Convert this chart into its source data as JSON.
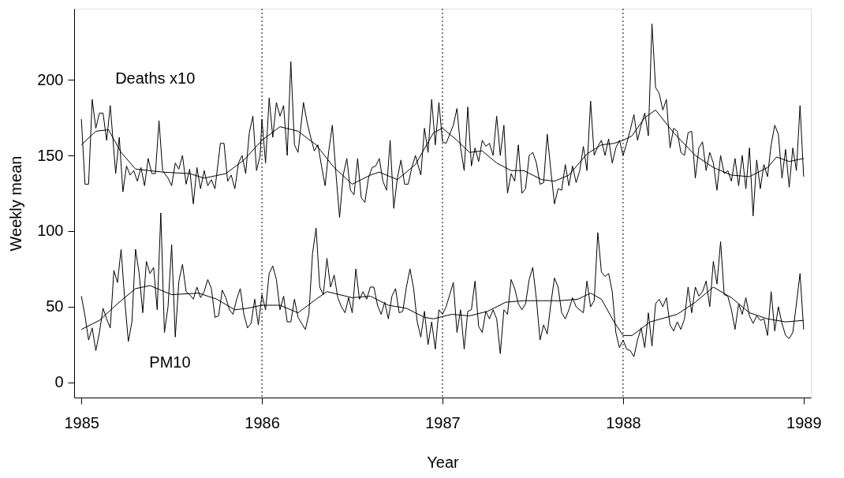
{
  "chart_data": {
    "type": "line",
    "xlabel": "Year",
    "ylabel": "Weekly mean",
    "xlim": [
      1984.96,
      1989.04
    ],
    "xticks": [
      1985,
      1986,
      1987,
      1988,
      1989
    ],
    "ylim": [
      -10,
      247
    ],
    "yticks": [
      0,
      50,
      100,
      150,
      200
    ],
    "grid": false,
    "legend": false,
    "marker": "none",
    "line_style": "solid",
    "ref_lines": [
      {
        "axis": "x",
        "value": 1986,
        "line_style": "dotted",
        "color": "#000000"
      },
      {
        "axis": "x",
        "value": 1987,
        "line_style": "dotted",
        "color": "#000000"
      },
      {
        "axis": "x",
        "value": 1988,
        "line_style": "dotted",
        "color": "#000000"
      }
    ],
    "annotations": [
      "Deaths x10",
      "PM10"
    ],
    "series": [
      {
        "color": "#000000",
        "x": [
          1985.0,
          1985.02,
          1985.04,
          1985.06,
          1985.08,
          1985.1,
          1985.12,
          1985.14,
          1985.16,
          1985.19,
          1985.21,
          1985.23,
          1985.25,
          1985.27,
          1985.29,
          1985.31,
          1985.33,
          1985.35,
          1985.37,
          1985.39,
          1985.41,
          1985.43,
          1985.45,
          1985.48,
          1985.5,
          1985.52,
          1985.54,
          1985.56,
          1985.58,
          1985.6,
          1985.62,
          1985.64,
          1985.66,
          1985.68,
          1985.7,
          1985.72,
          1985.74,
          1985.77,
          1985.79,
          1985.81,
          1985.83,
          1985.85,
          1985.87,
          1985.89,
          1985.91,
          1985.93,
          1985.95,
          1985.97,
          1985.99,
          1986.0,
          1986.02,
          1986.04,
          1986.06,
          1986.08,
          1986.1,
          1986.12,
          1986.14,
          1986.16,
          1986.18,
          1986.2,
          1986.23,
          1986.25,
          1986.27,
          1986.29,
          1986.31,
          1986.33,
          1986.35,
          1986.37,
          1986.39,
          1986.41,
          1986.43,
          1986.45,
          1986.47,
          1986.49,
          1986.51,
          1986.53,
          1986.55,
          1986.57,
          1986.59,
          1986.61,
          1986.63,
          1986.65,
          1986.67,
          1986.69,
          1986.71,
          1986.73,
          1986.75,
          1986.77,
          1986.79,
          1986.81,
          1986.83,
          1986.85,
          1986.88,
          1986.9,
          1986.92,
          1986.94,
          1986.96,
          1986.98,
          1987.0,
          1987.02,
          1987.04,
          1987.06,
          1987.08,
          1987.1,
          1987.12,
          1987.14,
          1987.16,
          1987.18,
          1987.2,
          1987.22,
          1987.24,
          1987.26,
          1987.28,
          1987.3,
          1987.32,
          1987.34,
          1987.36,
          1987.38,
          1987.4,
          1987.42,
          1987.44,
          1987.46,
          1987.48,
          1987.5,
          1987.52,
          1987.54,
          1987.56,
          1987.58,
          1987.6,
          1987.62,
          1987.64,
          1987.66,
          1987.68,
          1987.7,
          1987.72,
          1987.74,
          1987.76,
          1987.78,
          1987.8,
          1987.82,
          1987.84,
          1987.86,
          1987.88,
          1987.9,
          1987.92,
          1987.94,
          1987.96,
          1987.98,
          1988.0,
          1988.02,
          1988.04,
          1988.06,
          1988.08,
          1988.1,
          1988.12,
          1988.14,
          1988.16,
          1988.18,
          1988.2,
          1988.22,
          1988.24,
          1988.26,
          1988.28,
          1988.3,
          1988.32,
          1988.34,
          1988.36,
          1988.38,
          1988.4,
          1988.42,
          1988.44,
          1988.46,
          1988.48,
          1988.5,
          1988.52,
          1988.54,
          1988.56,
          1988.58,
          1988.6,
          1988.62,
          1988.64,
          1988.66,
          1988.68,
          1988.7,
          1988.72,
          1988.74,
          1988.76,
          1988.78,
          1988.8,
          1988.82,
          1988.84,
          1988.86,
          1988.88,
          1988.9,
          1988.92,
          1988.94,
          1988.96,
          1988.98,
          1989.0
        ],
        "values": [
          174,
          131,
          131,
          187,
          168,
          178,
          178,
          160,
          183,
          138,
          162,
          126,
          143,
          137,
          140,
          133,
          142,
          130,
          148,
          138,
          138,
          173,
          140,
          135,
          130,
          145,
          141,
          150,
          131,
          141,
          118,
          142,
          128,
          140,
          130,
          134,
          128,
          158,
          158,
          133,
          137,
          128,
          145,
          150,
          138,
          165,
          176,
          140,
          150,
          174,
          145,
          188,
          162,
          185,
          176,
          183,
          150,
          212,
          157,
          152,
          185,
          172,
          162,
          153,
          157,
          143,
          130,
          153,
          170,
          138,
          109,
          137,
          148,
          127,
          124,
          148,
          122,
          119,
          135,
          142,
          143,
          148,
          133,
          127,
          160,
          115,
          135,
          147,
          131,
          131,
          142,
          150,
          137,
          168,
          152,
          187,
          157,
          185,
          159,
          158,
          164,
          170,
          181,
          155,
          140,
          182,
          143,
          155,
          146,
          160,
          156,
          158,
          150,
          176,
          150,
          170,
          125,
          138,
          133,
          157,
          125,
          128,
          150,
          152,
          145,
          131,
          132,
          164,
          140,
          118,
          128,
          127,
          144,
          130,
          143,
          132,
          140,
          156,
          140,
          186,
          150,
          156,
          160,
          150,
          161,
          145,
          155,
          160,
          150,
          158,
          167,
          177,
          160,
          170,
          178,
          163,
          237,
          195,
          191,
          180,
          187,
          155,
          168,
          166,
          152,
          150,
          165,
          166,
          135,
          155,
          159,
          140,
          152,
          145,
          127,
          150,
          138,
          140,
          133,
          148,
          130,
          150,
          128,
          155,
          110,
          147,
          128,
          144,
          136,
          157,
          170,
          164,
          135,
          154,
          129,
          155,
          140,
          183,
          136
        ]
      },
      {
        "color": "#000000",
        "x": [
          1985.0,
          1985.08,
          1985.15,
          1985.22,
          1985.3,
          1985.45,
          1985.6,
          1985.68,
          1985.8,
          1985.9,
          1986.0,
          1986.1,
          1986.2,
          1986.3,
          1986.4,
          1986.5,
          1986.6,
          1986.65,
          1986.75,
          1986.85,
          1986.95,
          1987.0,
          1987.08,
          1987.15,
          1987.22,
          1987.3,
          1987.38,
          1987.45,
          1987.55,
          1987.62,
          1987.7,
          1987.8,
          1987.88,
          1987.95,
          1988.0,
          1988.05,
          1988.12,
          1988.18,
          1988.28,
          1988.4,
          1988.5,
          1988.6,
          1988.7,
          1988.8,
          1988.85,
          1988.92,
          1989.0
        ],
        "values": [
          157,
          166,
          167,
          152,
          141,
          139,
          138,
          135,
          138,
          147,
          160,
          169,
          166,
          157,
          142,
          131,
          137,
          139,
          134,
          144,
          165,
          168,
          160,
          152,
          153,
          145,
          140,
          140,
          134,
          133,
          137,
          151,
          157,
          158,
          160,
          163,
          175,
          180,
          165,
          150,
          142,
          137,
          136,
          142,
          149,
          146,
          148
        ]
      },
      {
        "color": "#000000",
        "x": [
          1985.0,
          1985.02,
          1985.04,
          1985.06,
          1985.08,
          1985.1,
          1985.12,
          1985.14,
          1985.16,
          1985.18,
          1985.2,
          1985.22,
          1985.24,
          1985.26,
          1985.28,
          1985.3,
          1985.32,
          1985.34,
          1985.36,
          1985.38,
          1985.4,
          1985.42,
          1985.44,
          1985.46,
          1985.48,
          1985.5,
          1985.52,
          1985.54,
          1985.56,
          1985.58,
          1985.6,
          1985.62,
          1985.64,
          1985.66,
          1985.68,
          1985.7,
          1985.72,
          1985.74,
          1985.76,
          1985.78,
          1985.8,
          1985.82,
          1985.84,
          1985.86,
          1985.88,
          1985.9,
          1985.92,
          1985.94,
          1985.96,
          1985.98,
          1986.0,
          1986.02,
          1986.04,
          1986.06,
          1986.08,
          1986.1,
          1986.12,
          1986.14,
          1986.16,
          1986.18,
          1986.2,
          1986.22,
          1986.24,
          1986.26,
          1986.28,
          1986.3,
          1986.32,
          1986.34,
          1986.36,
          1986.38,
          1986.4,
          1986.42,
          1986.44,
          1986.46,
          1986.48,
          1986.5,
          1986.52,
          1986.54,
          1986.56,
          1986.58,
          1986.6,
          1986.62,
          1986.64,
          1986.66,
          1986.68,
          1986.7,
          1986.72,
          1986.74,
          1986.76,
          1986.78,
          1986.8,
          1986.82,
          1986.84,
          1986.86,
          1986.88,
          1986.9,
          1986.92,
          1986.94,
          1986.96,
          1986.98,
          1987.0,
          1987.02,
          1987.04,
          1987.06,
          1987.08,
          1987.1,
          1987.12,
          1987.14,
          1987.16,
          1987.18,
          1987.2,
          1987.22,
          1987.24,
          1987.26,
          1987.28,
          1987.3,
          1987.32,
          1987.34,
          1987.36,
          1987.38,
          1987.4,
          1987.42,
          1987.44,
          1987.46,
          1987.48,
          1987.5,
          1987.52,
          1987.54,
          1987.56,
          1987.58,
          1987.6,
          1987.62,
          1987.64,
          1987.66,
          1987.68,
          1987.7,
          1987.72,
          1987.74,
          1987.76,
          1987.78,
          1987.8,
          1987.82,
          1987.84,
          1987.86,
          1987.88,
          1987.9,
          1987.92,
          1987.94,
          1987.96,
          1987.98,
          1988.0,
          1988.02,
          1988.04,
          1988.06,
          1988.08,
          1988.1,
          1988.12,
          1988.14,
          1988.16,
          1988.18,
          1988.2,
          1988.22,
          1988.24,
          1988.26,
          1988.28,
          1988.3,
          1988.32,
          1988.34,
          1988.36,
          1988.38,
          1988.4,
          1988.42,
          1988.44,
          1988.46,
          1988.48,
          1988.5,
          1988.52,
          1988.54,
          1988.56,
          1988.58,
          1988.6,
          1988.62,
          1988.64,
          1988.66,
          1988.68,
          1988.7,
          1988.72,
          1988.74,
          1988.76,
          1988.78,
          1988.8,
          1988.82,
          1988.84,
          1988.86,
          1988.88,
          1988.9,
          1988.92,
          1988.94,
          1988.96,
          1988.98,
          1989.0
        ],
        "values": [
          57,
          44,
          28,
          36,
          21,
          33,
          49,
          42,
          36,
          74,
          66,
          88,
          55,
          27,
          40,
          88,
          72,
          46,
          80,
          72,
          76,
          48,
          112,
          33,
          50,
          91,
          30,
          67,
          78,
          60,
          58,
          55,
          63,
          56,
          60,
          68,
          62,
          43,
          44,
          61,
          56,
          48,
          45,
          55,
          62,
          45,
          36,
          39,
          55,
          38,
          58,
          48,
          72,
          77,
          68,
          48,
          57,
          40,
          40,
          55,
          43,
          39,
          35,
          45,
          85,
          102,
          63,
          58,
          82,
          63,
          71,
          56,
          50,
          46,
          56,
          46,
          75,
          55,
          60,
          55,
          63,
          63,
          51,
          45,
          53,
          42,
          57,
          62,
          46,
          47,
          63,
          75,
          62,
          40,
          30,
          47,
          25,
          40,
          22,
          48,
          45,
          50,
          58,
          66,
          33,
          48,
          22,
          47,
          48,
          67,
          37,
          33,
          47,
          42,
          48,
          42,
          19,
          48,
          45,
          68,
          62,
          52,
          48,
          52,
          68,
          76,
          55,
          28,
          38,
          32,
          52,
          69,
          63,
          46,
          42,
          48,
          56,
          50,
          48,
          46,
          67,
          50,
          54,
          99,
          73,
          70,
          72,
          60,
          33,
          23,
          28,
          22,
          21,
          17,
          28,
          36,
          23,
          46,
          24,
          52,
          55,
          50,
          56,
          38,
          34,
          40,
          35,
          42,
          63,
          46,
          63,
          57,
          60,
          67,
          50,
          80,
          65,
          93,
          58,
          57,
          48,
          35,
          52,
          45,
          56,
          44,
          39,
          44,
          41,
          42,
          31,
          60,
          34,
          50,
          39,
          31,
          29,
          33,
          52,
          72,
          35
        ]
      },
      {
        "color": "#000000",
        "x": [
          1985.0,
          1985.1,
          1985.2,
          1985.3,
          1985.38,
          1985.5,
          1985.65,
          1985.75,
          1985.85,
          1985.92,
          1986.0,
          1986.1,
          1986.2,
          1986.3,
          1986.36,
          1986.5,
          1986.6,
          1986.7,
          1986.8,
          1986.9,
          1986.95,
          1987.05,
          1987.15,
          1987.25,
          1987.35,
          1987.45,
          1987.55,
          1987.65,
          1987.75,
          1987.82,
          1987.88,
          1987.95,
          1988.0,
          1988.05,
          1988.15,
          1988.3,
          1988.4,
          1988.5,
          1988.6,
          1988.7,
          1988.8,
          1988.9,
          1989.0
        ],
        "values": [
          35,
          41,
          52,
          62,
          64,
          58,
          59,
          55,
          48,
          49,
          51,
          51,
          46,
          55,
          60,
          56,
          57,
          51,
          49,
          43,
          42,
          45,
          44,
          47,
          53,
          54,
          54,
          54,
          55,
          59,
          55,
          40,
          31,
          31,
          40,
          45,
          53,
          63,
          56,
          46,
          42,
          40,
          41
        ]
      }
    ]
  }
}
